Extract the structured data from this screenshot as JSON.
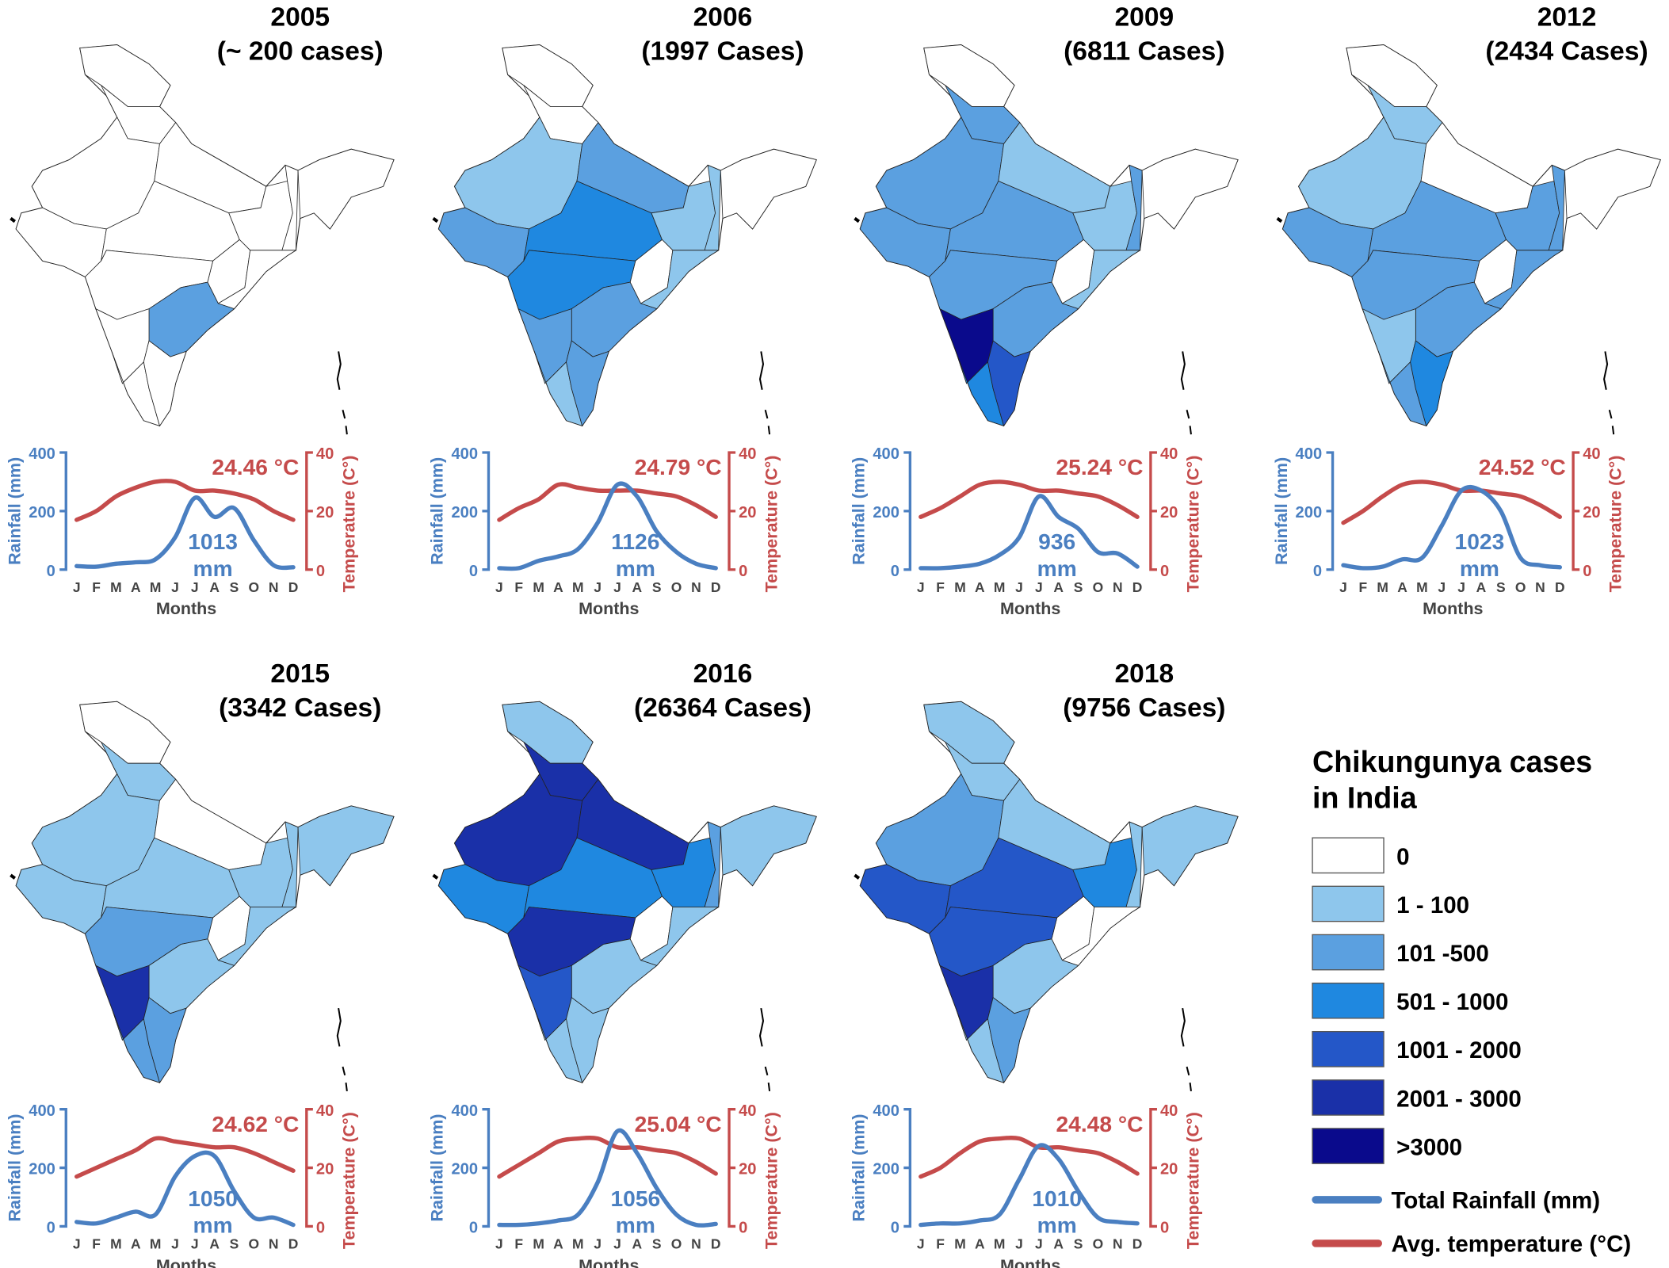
{
  "colors": {
    "rainfall": "#4a7fc1",
    "temperature": "#c54b4b",
    "month_labels": "#444444",
    "levels": [
      "#ffffff",
      "#8ec6ec",
      "#5ba0e0",
      "#1f88e0",
      "#2457c8",
      "#1a30a8",
      "#0a0a8c"
    ]
  },
  "legend": {
    "title_line1": "Chikungunya cases",
    "title_line2": "in India",
    "classes": [
      "0",
      "1 - 100",
      "101 -500",
      "501 - 1000",
      "1001 - 2000",
      "2001 - 3000",
      ">3000"
    ],
    "rainfall_label": "Total Rainfall (mm)",
    "temperature_label": "Avg. temperature (°C)"
  },
  "chart_data": [
    {
      "type": "line",
      "year": "2005",
      "subtitle": "(~ 200 cases)",
      "avg_temperature": "24.46 °C",
      "total_rainfall": "1013",
      "total_rainfall_unit": "mm",
      "xlabel": "Months",
      "ylabel_left": "Rainfall (mm)",
      "ylabel_right": "Temperature (C°)",
      "categories": [
        "J",
        "F",
        "M",
        "A",
        "M",
        "J",
        "J",
        "A",
        "S",
        "O",
        "N",
        "D"
      ],
      "ylim_left": [
        0,
        400
      ],
      "yticks_left": [
        "400",
        "200",
        "0"
      ],
      "ylim_right": [
        0,
        40
      ],
      "yticks_right": [
        "40",
        "20",
        "0"
      ],
      "series": [
        {
          "name": "Total Rainfall (mm)",
          "values": [
            12,
            10,
            20,
            25,
            35,
            110,
            245,
            180,
            210,
            100,
            15,
            8
          ]
        },
        {
          "name": "Avg. temperature (°C)",
          "values": [
            17,
            20,
            25,
            28,
            30,
            30,
            27,
            27,
            26,
            24,
            20,
            17
          ]
        }
      ],
      "region_levels": [
        0,
        0,
        0,
        0,
        0,
        0,
        0,
        0,
        0,
        0,
        0,
        0,
        2,
        0,
        0,
        0
      ]
    },
    {
      "type": "line",
      "year": "2006",
      "subtitle": "(1997 Cases)",
      "avg_temperature": "24.79 °C",
      "total_rainfall": "1126",
      "total_rainfall_unit": "mm",
      "xlabel": "Months",
      "ylabel_left": "Rainfall (mm)",
      "ylabel_right": "Temperature (C°)",
      "categories": [
        "J",
        "F",
        "M",
        "A",
        "M",
        "J",
        "J",
        "A",
        "S",
        "O",
        "N",
        "D"
      ],
      "ylim_left": [
        0,
        400
      ],
      "yticks_left": [
        "400",
        "200",
        "0"
      ],
      "ylim_right": [
        0,
        40
      ],
      "yticks_right": [
        "40",
        "20",
        "0"
      ],
      "series": [
        {
          "name": "Total Rainfall (mm)",
          "values": [
            5,
            5,
            30,
            45,
            70,
            160,
            290,
            250,
            130,
            60,
            20,
            5
          ]
        },
        {
          "name": "Avg. temperature (°C)",
          "values": [
            17,
            21,
            24,
            29,
            28,
            27,
            27,
            27,
            26,
            25,
            22,
            18
          ]
        }
      ],
      "region_levels": [
        0,
        0,
        1,
        2,
        2,
        3,
        1,
        1,
        0,
        0,
        1,
        3,
        2,
        2,
        1,
        2
      ]
    },
    {
      "type": "line",
      "year": "2009",
      "subtitle": "(6811 Cases)",
      "avg_temperature": "25.24 °C",
      "total_rainfall": "936",
      "total_rainfall_unit": "mm",
      "xlabel": "Months",
      "ylabel_left": "Rainfall (mm)",
      "ylabel_right": "Temperature (C°)",
      "categories": [
        "J",
        "F",
        "M",
        "A",
        "M",
        "J",
        "J",
        "A",
        "S",
        "O",
        "N",
        "D"
      ],
      "ylim_left": [
        0,
        400
      ],
      "yticks_left": [
        "400",
        "200",
        "0"
      ],
      "ylim_right": [
        0,
        40
      ],
      "yticks_right": [
        "40",
        "20",
        "0"
      ],
      "series": [
        {
          "name": "Total Rainfall (mm)",
          "values": [
            5,
            5,
            10,
            20,
            50,
            110,
            250,
            180,
            140,
            60,
            55,
            10
          ]
        },
        {
          "name": "Avg. temperature (°C)",
          "values": [
            18,
            21,
            25,
            29,
            30,
            29,
            27,
            27,
            26,
            25,
            22,
            18
          ]
        }
      ],
      "region_levels": [
        0,
        2,
        2,
        2,
        1,
        2,
        1,
        2,
        0,
        0,
        1,
        2,
        2,
        6,
        3,
        4
      ]
    },
    {
      "type": "line",
      "year": "2012",
      "subtitle": "(2434 Cases)",
      "avg_temperature": "24.52 °C",
      "total_rainfall": "1023",
      "total_rainfall_unit": "mm",
      "xlabel": "Months",
      "ylabel_left": "Rainfall (mm)",
      "ylabel_right": "Temperature (C°)",
      "categories": [
        "J",
        "F",
        "M",
        "A",
        "M",
        "J",
        "J",
        "A",
        "S",
        "O",
        "N",
        "D"
      ],
      "ylim_left": [
        0,
        400
      ],
      "yticks_left": [
        "400",
        "200",
        "0"
      ],
      "ylim_right": [
        0,
        40
      ],
      "yticks_right": [
        "40",
        "20",
        "0"
      ],
      "series": [
        {
          "name": "Total Rainfall (mm)",
          "values": [
            15,
            5,
            10,
            35,
            40,
            150,
            270,
            270,
            200,
            40,
            15,
            8
          ]
        },
        {
          "name": "Avg. temperature (°C)",
          "values": [
            16,
            20,
            25,
            29,
            30,
            29,
            27,
            27,
            26,
            25,
            22,
            18
          ]
        }
      ],
      "region_levels": [
        0,
        1,
        1,
        2,
        0,
        2,
        2,
        2,
        0,
        0,
        2,
        2,
        2,
        1,
        2,
        3
      ]
    },
    {
      "type": "line",
      "year": "2015",
      "subtitle": "(3342 Cases)",
      "avg_temperature": "24.62 °C",
      "total_rainfall": "1050",
      "total_rainfall_unit": "mm",
      "xlabel": "Months",
      "ylabel_left": "Rainfall (mm)",
      "ylabel_right": "Temperature (C°)",
      "categories": [
        "J",
        "F",
        "M",
        "A",
        "M",
        "J",
        "J",
        "A",
        "S",
        "O",
        "N",
        "D"
      ],
      "ylim_left": [
        0,
        400
      ],
      "yticks_left": [
        "400",
        "200",
        "0"
      ],
      "ylim_right": [
        0,
        40
      ],
      "yticks_right": [
        "40",
        "20",
        "0"
      ],
      "series": [
        {
          "name": "Total Rainfall (mm)",
          "values": [
            15,
            10,
            30,
            50,
            40,
            170,
            240,
            240,
            120,
            30,
            30,
            5
          ]
        },
        {
          "name": "Avg. temperature (°C)",
          "values": [
            17,
            20,
            23,
            26,
            30,
            29,
            28,
            27,
            27,
            25,
            22,
            19
          ]
        }
      ],
      "region_levels": [
        0,
        1,
        1,
        1,
        0,
        1,
        1,
        1,
        1,
        0,
        1,
        2,
        1,
        5,
        2,
        2
      ]
    },
    {
      "type": "line",
      "year": "2016",
      "subtitle": "(26364 Cases)",
      "avg_temperature": "25.04 °C",
      "total_rainfall": "1056",
      "total_rainfall_unit": "mm",
      "xlabel": "Months",
      "ylabel_left": "Rainfall (mm)",
      "ylabel_right": "Temperature (C°)",
      "categories": [
        "J",
        "F",
        "M",
        "A",
        "M",
        "J",
        "J",
        "A",
        "S",
        "O",
        "N",
        "D"
      ],
      "ylim_left": [
        0,
        400
      ],
      "yticks_left": [
        "400",
        "200",
        "0"
      ],
      "ylim_right": [
        0,
        40
      ],
      "yticks_right": [
        "40",
        "20",
        "0"
      ],
      "series": [
        {
          "name": "Total Rainfall (mm)",
          "values": [
            5,
            5,
            10,
            20,
            40,
            150,
            325,
            250,
            130,
            40,
            5,
            8
          ]
        },
        {
          "name": "Avg. temperature (°C)",
          "values": [
            17,
            21,
            25,
            29,
            30,
            30,
            27,
            27,
            26,
            25,
            22,
            18
          ]
        }
      ],
      "region_levels": [
        1,
        5,
        5,
        3,
        5,
        3,
        3,
        2,
        1,
        0,
        1,
        5,
        1,
        4,
        1,
        1
      ]
    },
    {
      "type": "line",
      "year": "2018",
      "subtitle": "(9756 Cases)",
      "avg_temperature": "24.48 °C",
      "total_rainfall": "1010",
      "total_rainfall_unit": "mm",
      "xlabel": "Months",
      "ylabel_left": "Rainfall (mm)",
      "ylabel_right": "Temperature (C°)",
      "categories": [
        "J",
        "F",
        "M",
        "A",
        "M",
        "J",
        "J",
        "A",
        "S",
        "O",
        "N",
        "D"
      ],
      "ylim_left": [
        0,
        400
      ],
      "yticks_left": [
        "400",
        "200",
        "0"
      ],
      "ylim_right": [
        0,
        40
      ],
      "yticks_right": [
        "40",
        "20",
        "0"
      ],
      "series": [
        {
          "name": "Total Rainfall (mm)",
          "values": [
            5,
            10,
            10,
            20,
            40,
            160,
            275,
            230,
            120,
            30,
            15,
            10
          ]
        },
        {
          "name": "Avg. temperature (°C)",
          "values": [
            17,
            20,
            25,
            29,
            30,
            30,
            27,
            27,
            26,
            25,
            22,
            18
          ]
        }
      ],
      "region_levels": [
        1,
        1,
        2,
        4,
        1,
        4,
        3,
        1,
        1,
        0,
        0,
        4,
        1,
        5,
        1,
        2
      ]
    }
  ]
}
